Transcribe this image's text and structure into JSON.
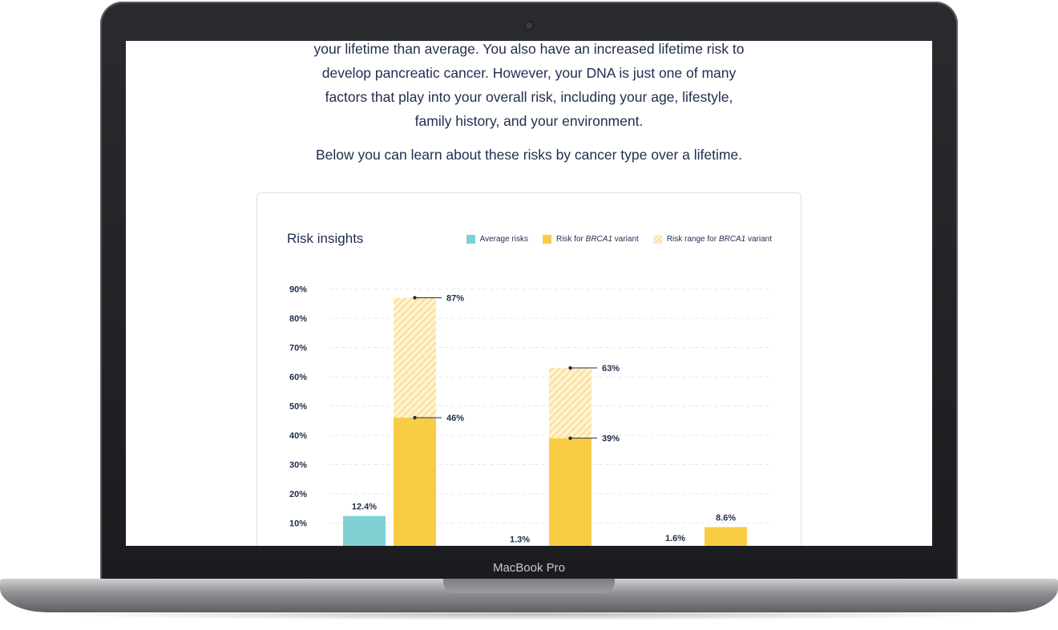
{
  "intro": {
    "lines": [
      "your lifetime than average. You also have an increased lifetime risk to",
      "develop pancreatic cancer. However, your DNA is just one of many",
      "factors that play into your overall risk, including your age, lifestyle,",
      "family history, and your environment."
    ],
    "below_text": "Below you can learn about these risks by cancer type over a lifetime."
  },
  "device": {
    "label": "MacBook Pro"
  },
  "card": {
    "title": "Risk insights",
    "legend": {
      "average": "Average risks",
      "risk_prefix": "Risk for ",
      "risk_gene": "BRCA1",
      "risk_suffix": " variant",
      "range_prefix": "Risk range for ",
      "range_gene": "BRCA1",
      "range_suffix": " variant"
    }
  },
  "colors": {
    "average": "#7fd0d3",
    "risk": "#f9cc45",
    "range": "#fbe19a",
    "text": "#1f2d4e"
  },
  "chart_data": {
    "type": "bar",
    "title": "Risk insights",
    "y_ticks": [
      "10%",
      "20%",
      "30%",
      "40%",
      "50%",
      "60%",
      "70%",
      "80%",
      "90%"
    ],
    "ylim": [
      0,
      90
    ],
    "grid": true,
    "legend_position": "top-right",
    "series": [
      {
        "name": "Average risks",
        "values": [
          12.4,
          1.3,
          1.6
        ],
        "labels": [
          "12.4%",
          "1.3%",
          "1.6%"
        ]
      },
      {
        "name": "Risk for BRCA1 variant",
        "values": [
          46,
          39,
          8.6
        ],
        "labels": [
          "46%",
          "39%",
          "8.6%"
        ]
      },
      {
        "name": "Risk range for BRCA1 variant",
        "values": [
          87,
          63,
          null
        ],
        "labels": [
          "87%",
          "63%",
          ""
        ]
      }
    ]
  }
}
